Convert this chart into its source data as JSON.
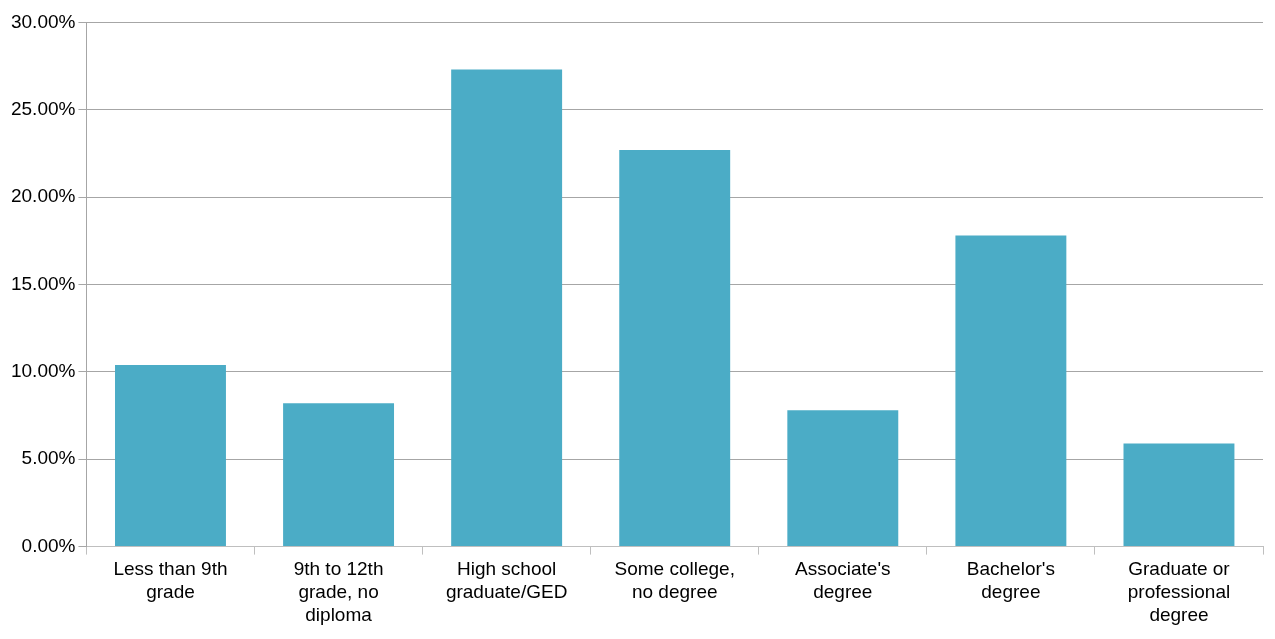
{
  "chart_data": {
    "type": "bar",
    "categories": [
      "Less than 9th grade",
      "9th to 12th grade, no diploma",
      "High school graduate/GED",
      "Some college, no degree",
      "Associate's degree",
      "Bachelor's degree",
      "Graduate or professional degree"
    ],
    "values": [
      10.4,
      8.2,
      27.3,
      22.7,
      7.8,
      17.8,
      5.9
    ],
    "color": "#4bacc6",
    "ylim": [
      0,
      30
    ],
    "yticks": [
      {
        "value": 0,
        "label": "0.00%"
      },
      {
        "value": 5,
        "label": "5.00%"
      },
      {
        "value": 10,
        "label": "10.00%"
      },
      {
        "value": 15,
        "label": "15.00%"
      },
      {
        "value": 20,
        "label": "20.00%"
      },
      {
        "value": 25,
        "label": "25.00%"
      },
      {
        "value": 30,
        "label": "30.00%"
      }
    ],
    "grid": "y",
    "legend": false
  }
}
